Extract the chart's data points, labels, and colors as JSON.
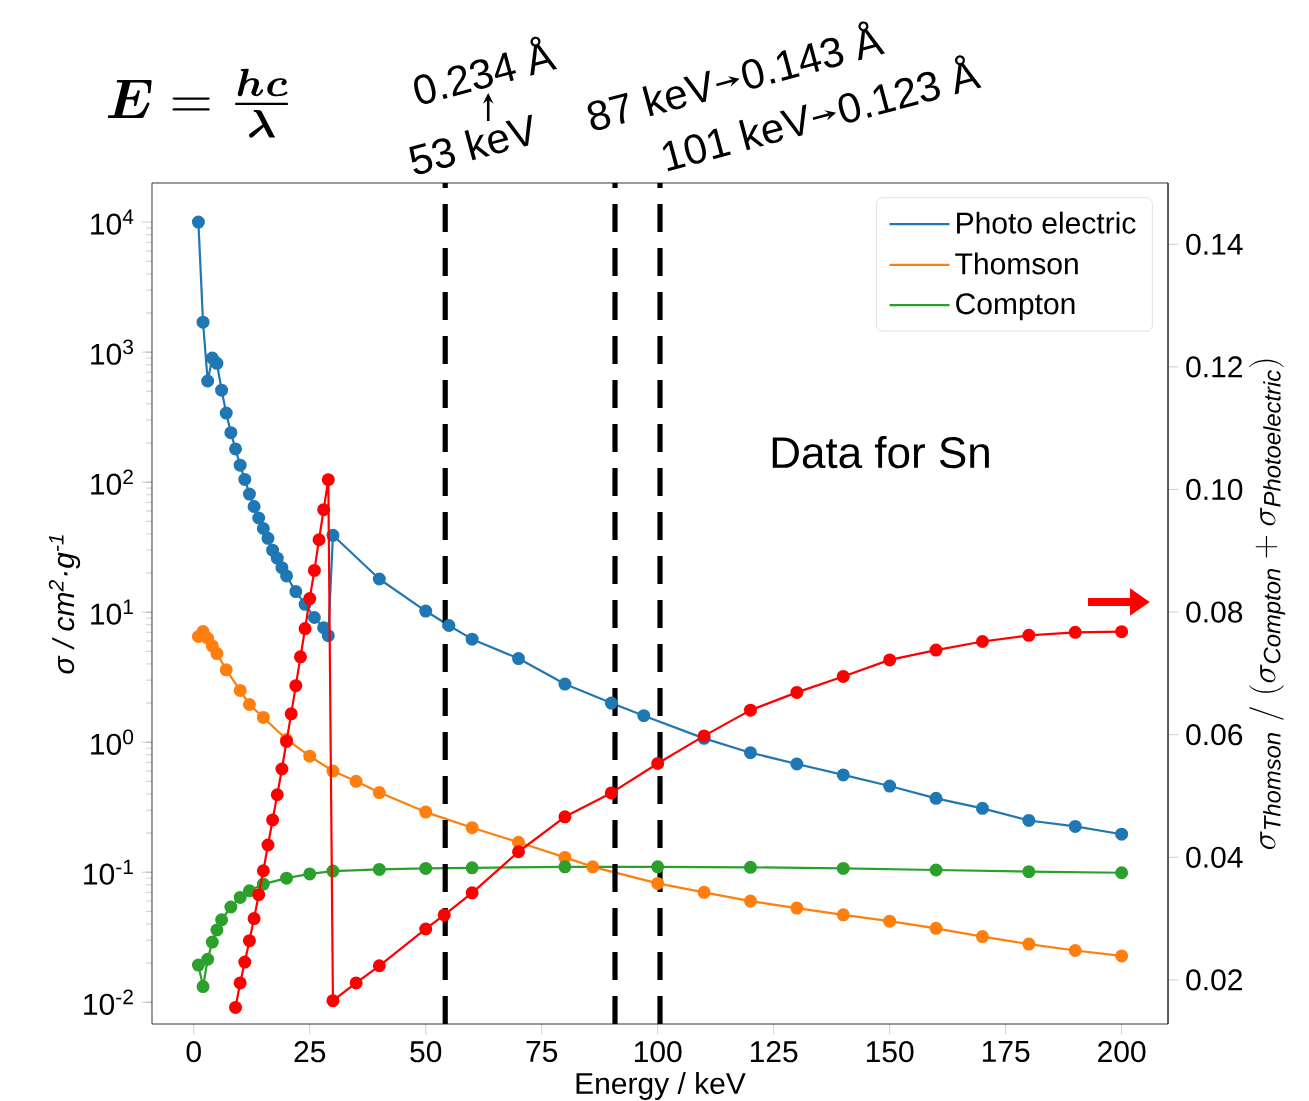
{
  "chart_data": {
    "type": "line",
    "xlabel": "Energy / keV",
    "ylabel": "σ / cm$^{2}$·g$^{-1}$",
    "y2label": "\\sigma_{\\mathit{Thomson}} \\;/\\; (\\sigma_{\\mathit{Compton}} + \\sigma_{\\mathit{Photoelectric}})",
    "xlim": [
      -9,
      210
    ],
    "xticks": [
      0,
      25,
      50,
      75,
      100,
      125,
      150,
      175,
      200
    ],
    "ylim": [
      0.0068,
      20000
    ],
    "yticks": [
      {
        "value": 0.01,
        "label": "10$^{-2}$"
      },
      {
        "value": 0.1,
        "label": "10$^{-1}$"
      },
      {
        "value": 1,
        "label": "10$^{0}$"
      },
      {
        "value": 10,
        "label": "10$^{1}$"
      },
      {
        "value": 100,
        "label": "10$^{2}$"
      },
      {
        "value": 1000,
        "label": "10$^{3}$"
      },
      {
        "value": 10000,
        "label": "10$^{4}$"
      }
    ],
    "y2lim": [
      0.0128,
      0.15
    ],
    "y2ticks": [
      0.02,
      0.04,
      0.06,
      0.08,
      {
        "value": 0.1,
        "label": "0.10"
      },
      0.12,
      0.14
    ],
    "log": "y",
    "legend": "top right",
    "marker": "circle",
    "line_style": "solid",
    "series": [
      {
        "name": "Photo electric",
        "color": "#1f77b4",
        "x": [
          1,
          2,
          3,
          4,
          5,
          6,
          7,
          8,
          9,
          10,
          11,
          12,
          13,
          14,
          15,
          16,
          17,
          18,
          19,
          20,
          22,
          24,
          26,
          28,
          29,
          30,
          40,
          50,
          55,
          60,
          70,
          80,
          90,
          97,
          110,
          120,
          130,
          140,
          150,
          160,
          170,
          180,
          190,
          200
        ],
        "values": [
          10000,
          1700,
          600,
          900,
          820,
          510,
          340,
          240,
          180,
          135,
          105,
          81,
          65,
          53,
          44,
          37,
          30,
          26,
          22,
          19,
          14.4,
          11.5,
          9.1,
          7.6,
          6.6,
          39,
          18,
          10.2,
          7.9,
          6.2,
          4.4,
          2.8,
          2.0,
          1.6,
          1.07,
          0.83,
          0.68,
          0.56,
          0.46,
          0.37,
          0.31,
          0.25,
          0.225,
          0.196
        ]
      },
      {
        "name": "Thomson",
        "color": "#ff7f0e",
        "x": [
          1,
          2,
          3,
          4,
          5,
          7,
          10,
          12,
          15,
          20,
          25,
          30,
          35,
          40,
          50,
          60,
          70,
          80,
          86,
          100,
          110,
          120,
          130,
          140,
          150,
          160,
          170,
          180,
          190,
          200
        ],
        "values": [
          6.5,
          7.1,
          6.3,
          5.5,
          4.8,
          3.6,
          2.5,
          1.95,
          1.55,
          1.05,
          0.78,
          0.6,
          0.5,
          0.41,
          0.29,
          0.22,
          0.17,
          0.13,
          0.11,
          0.082,
          0.07,
          0.06,
          0.053,
          0.047,
          0.042,
          0.037,
          0.032,
          0.028,
          0.025,
          0.0227
        ]
      },
      {
        "name": "Compton",
        "color": "#2ca02c",
        "x": [
          1,
          2,
          3,
          4,
          5,
          6,
          8,
          10,
          12,
          15,
          20,
          25,
          30,
          40,
          50,
          60,
          80,
          100,
          120,
          140,
          160,
          180,
          200
        ],
        "values": [
          0.0193,
          0.0132,
          0.0214,
          0.029,
          0.036,
          0.043,
          0.054,
          0.064,
          0.072,
          0.081,
          0.09,
          0.097,
          0.102,
          0.105,
          0.107,
          0.108,
          0.11,
          0.11,
          0.109,
          0.107,
          0.104,
          0.101,
          0.099
        ]
      },
      {
        "color": "#ff0000",
        "axis": "y2",
        "x": [
          9,
          10,
          11,
          12,
          13,
          14,
          15,
          16,
          17,
          18,
          19,
          20,
          21,
          22,
          23,
          24,
          25,
          26,
          27,
          28,
          29,
          30,
          35,
          40,
          50,
          54,
          60,
          70,
          80,
          90,
          100,
          110,
          120,
          130,
          140,
          150,
          160,
          170,
          180,
          190,
          200
        ],
        "values": [
          0.0155,
          0.0195,
          0.0229,
          0.0264,
          0.03,
          0.0339,
          0.0378,
          0.042,
          0.0461,
          0.0502,
          0.0544,
          0.0589,
          0.0634,
          0.068,
          0.0727,
          0.0773,
          0.0822,
          0.0868,
          0.0918,
          0.0967,
          0.1016,
          0.0166,
          0.0195,
          0.0223,
          0.0283,
          0.0306,
          0.0342,
          0.0409,
          0.0466,
          0.0505,
          0.0553,
          0.0598,
          0.064,
          0.0669,
          0.0695,
          0.0722,
          0.0738,
          0.0752,
          0.0762,
          0.0767,
          0.0768
        ]
      }
    ],
    "ref_lines": [
      {
        "axis": "x",
        "value": 54.2,
        "label": "53 keV",
        "color": "#000000",
        "line_style": "dashed"
      },
      {
        "axis": "x",
        "value": 90.8,
        "label": "87 keV",
        "color": "#000000",
        "line_style": "dashed"
      },
      {
        "axis": "x",
        "value": 100.5,
        "label": "101 keV",
        "color": "#000000",
        "line_style": "dashed"
      }
    ],
    "annotations": [
      "\\boldsymbol{E} = \\frac{\\boldsymbol{hc}}{\\boldsymbol{\\lambda}}",
      "0.234 Å",
      "0.143 Å",
      "0.123 Å",
      "Data for Sn"
    ]
  }
}
